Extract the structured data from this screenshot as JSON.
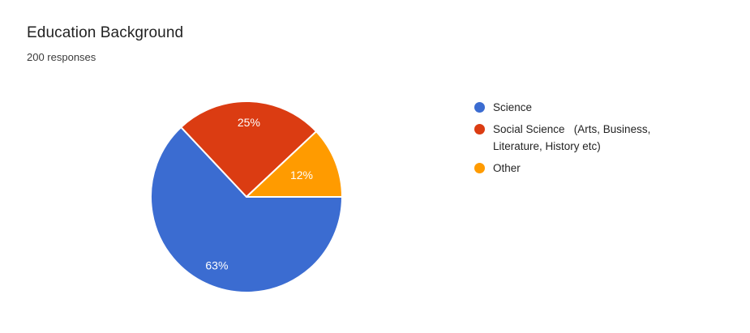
{
  "chart_data": {
    "type": "pie",
    "title": "Education Background",
    "subtitle": "200 responses",
    "responses": 200,
    "labels": [
      "Science",
      "Social Science   (Arts, Business, Literature, History etc)",
      "Other"
    ],
    "values_percent": [
      63,
      25,
      12
    ],
    "slice_labels": [
      "63%",
      "25%",
      "12%"
    ],
    "colors": [
      "#3B6CD1",
      "#DB3C12",
      "#FF9B00"
    ],
    "slice_label_color": "#FFFFFF",
    "start_angle_deg": 0,
    "direction": "clockwise",
    "legend_position": "right",
    "background": "#FFFFFF"
  }
}
